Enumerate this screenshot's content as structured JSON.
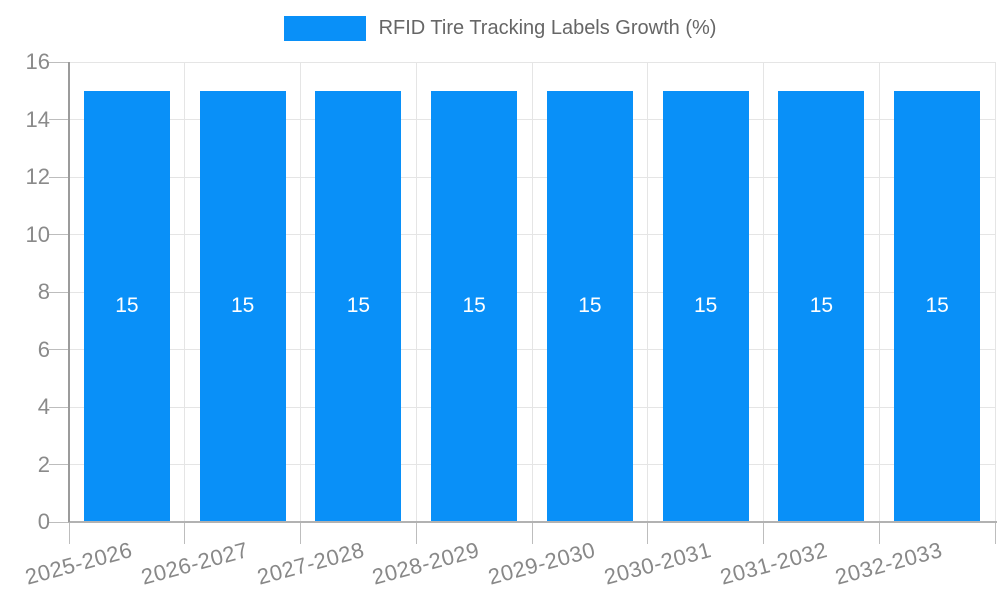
{
  "chart_data": {
    "type": "bar",
    "legend": {
      "label": "RFID Tire Tracking Labels Growth (%)",
      "position": "top-center"
    },
    "categories": [
      "2025-2026",
      "2026-2027",
      "2027-2028",
      "2028-2029",
      "2029-2030",
      "2030-2031",
      "2031-2032",
      "2032-2033"
    ],
    "values": [
      15,
      15,
      15,
      15,
      15,
      15,
      15,
      15
    ],
    "bar_value_labels": [
      "15",
      "15",
      "15",
      "15",
      "15",
      "15",
      "15",
      "15"
    ],
    "ylim": [
      0,
      16
    ],
    "yticks": [
      0,
      2,
      4,
      6,
      8,
      10,
      12,
      14,
      16
    ],
    "grid": true,
    "xlabel": "",
    "ylabel": "",
    "colors": {
      "bar": "#0990f8",
      "bar_value_label": "#ffffff",
      "legend_text": "#666666",
      "y_axis_label": "#8a8a8a",
      "x_axis_label": "#888888",
      "gridline": "#e5e5e5",
      "y_axis_line": "#9b9b9b",
      "x_axis_line": "#b2b2b2",
      "tick_mark": "#bdbdbd"
    }
  }
}
